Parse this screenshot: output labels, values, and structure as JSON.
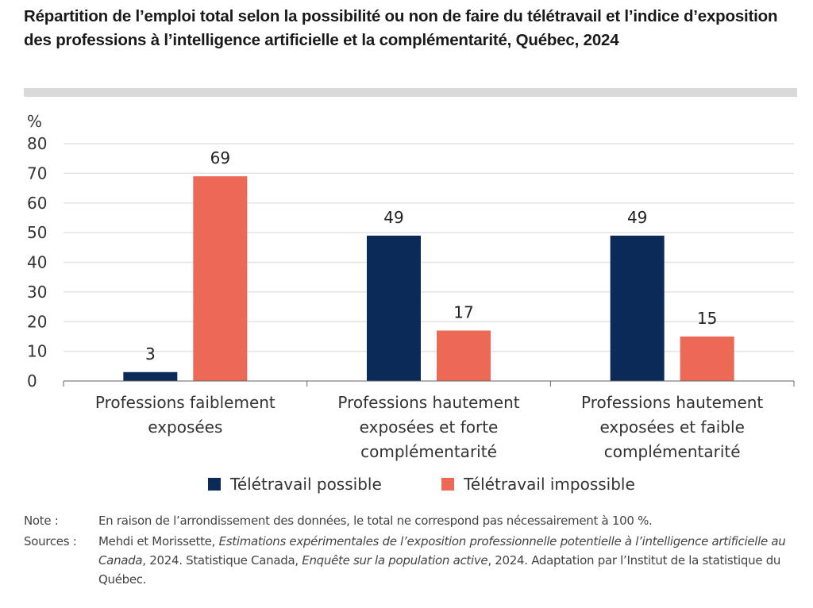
{
  "title": "Répartition de l’emploi total selon la possibilité ou non de faire du télétravail et l’indice d’exposition des professions à l’intelligence artificielle et la complémentarité, Québec, 2024",
  "chart_data": {
    "type": "bar",
    "title": "Répartition de l’emploi total selon la possibilité ou non de faire du télétravail et l’indice d’exposition des professions à l’intelligence artificielle et la complémentarité, Québec, 2024",
    "xlabel": "",
    "ylabel": "%",
    "ylim": [
      0,
      80
    ],
    "yticks": [
      0,
      10,
      20,
      30,
      40,
      50,
      60,
      70,
      80
    ],
    "ytick_labels": [
      "0",
      "10",
      "20",
      "30",
      "40",
      "50",
      "60",
      "70",
      "80"
    ],
    "grid": true,
    "legend_position": "bottom",
    "categories": [
      [
        "Professions faiblement",
        "exposées"
      ],
      [
        "Professions hautement",
        "exposées et forte",
        "complémentarité"
      ],
      [
        "Professions hautement",
        "exposées et faible",
        "complémentarité"
      ]
    ],
    "series": [
      {
        "name": "Télétravail possible",
        "color": "#0b2a57",
        "values": [
          3,
          49,
          49
        ],
        "labels": [
          "3",
          "49",
          "49"
        ]
      },
      {
        "name": "Télétravail impossible",
        "color": "#eb6955",
        "values": [
          69,
          17,
          15
        ],
        "labels": [
          "69",
          "17",
          "15"
        ]
      }
    ]
  },
  "notes": {
    "note_key": "Note :",
    "note_text": "En raison de l’arrondissement des données, le total ne correspond pas nécessairement à 100 %.",
    "sources_key": "Sources :",
    "sources_parts": {
      "p1": "Mehdi et Morissette, ",
      "p2_italic": "Estimations expérimentales de l’exposition professionnelle potentielle à l’intelligence artificielle au Canada",
      "p3": ", 2024. Statistique Canada, ",
      "p4_italic": "Enquête sur la population active",
      "p5": ", 2024. Adaptation par l’Institut de la statistique du Québec."
    }
  }
}
